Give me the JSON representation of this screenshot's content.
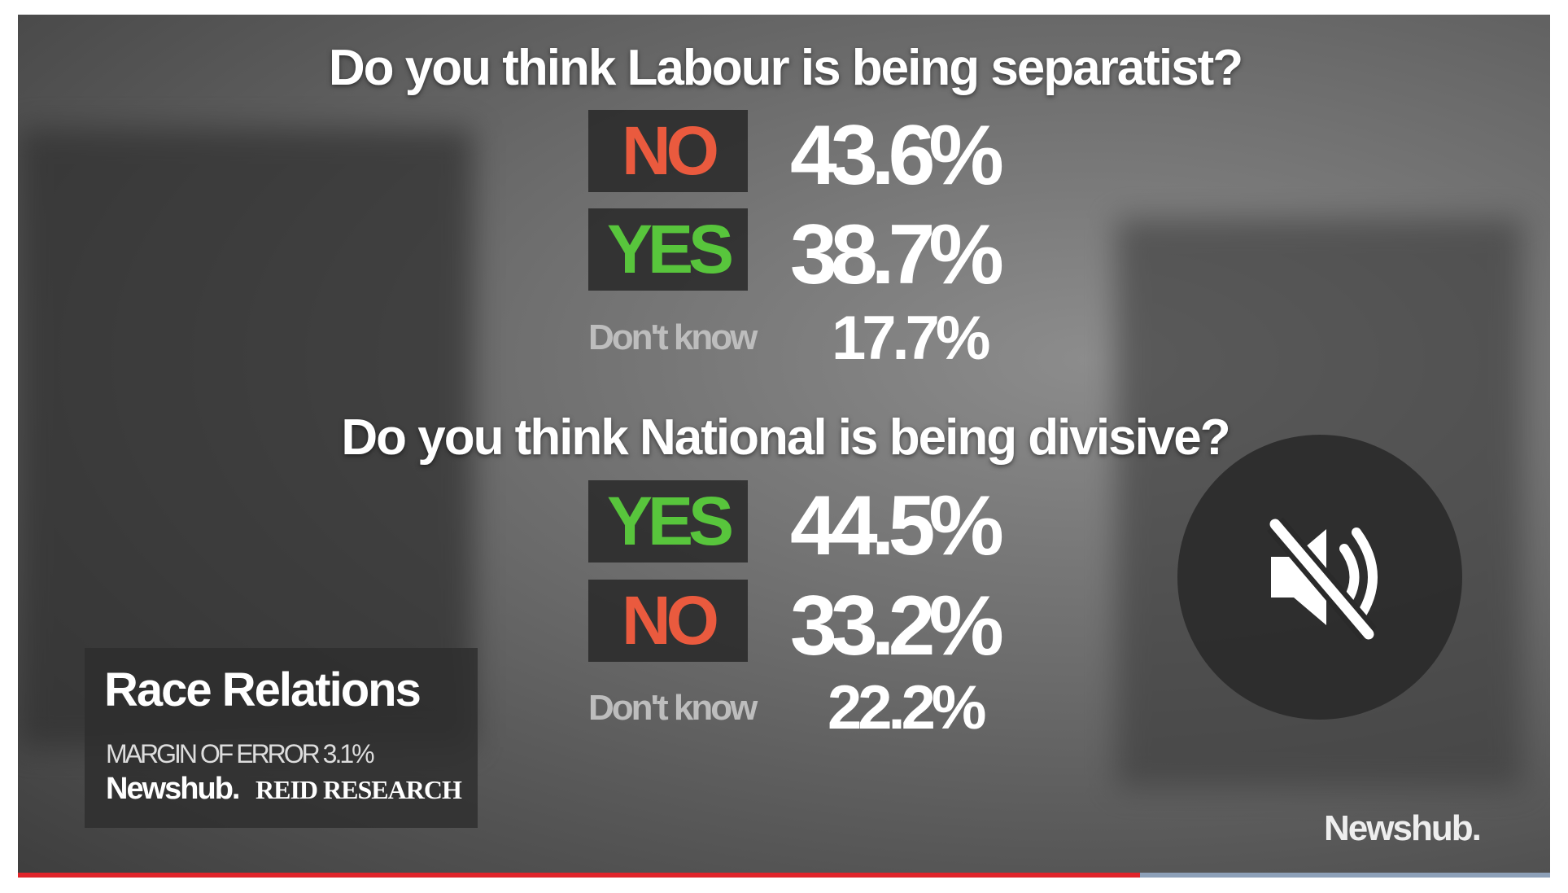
{
  "question_1": {
    "title": "Do you think Labour is being separatist?",
    "answers": [
      {
        "label": "NO",
        "value": "43.6%"
      },
      {
        "label": "YES",
        "value": "38.7%"
      },
      {
        "label": "Don't know",
        "value": "17.7%"
      }
    ]
  },
  "question_2": {
    "title": "Do you think National is being divisive?",
    "answers": [
      {
        "label": "YES",
        "value": "44.5%"
      },
      {
        "label": "NO",
        "value": "33.2%"
      },
      {
        "label": "Don't know",
        "value": "22.2%"
      }
    ]
  },
  "info_box": {
    "title": "Race Relations",
    "margin": "MARGIN OF ERROR 3.1%",
    "source": "Newshub.",
    "partner": "REID RESEARCH"
  },
  "watermark": "Newshub."
}
